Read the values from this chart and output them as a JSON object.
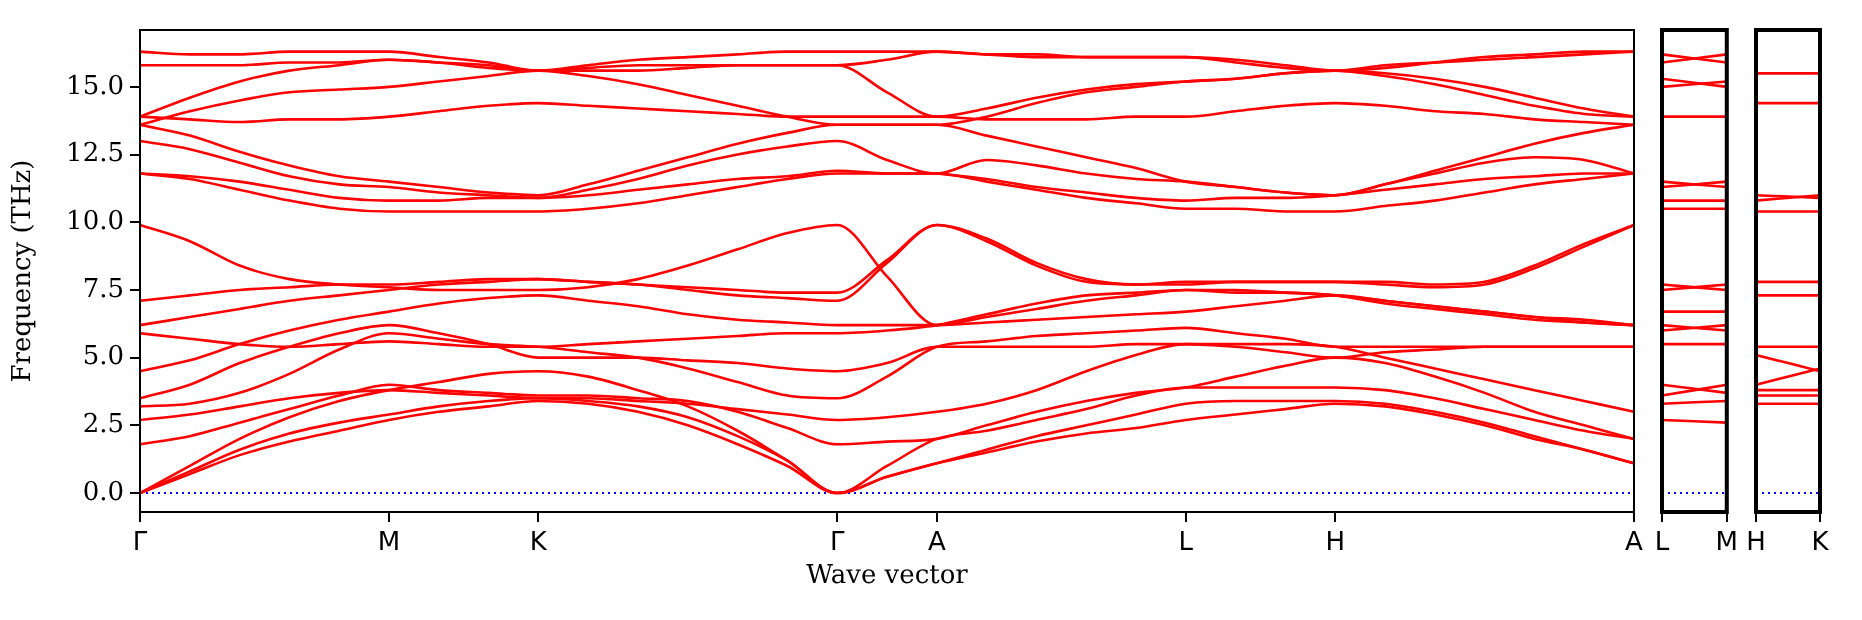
{
  "chart_data": [
    {
      "type": "line",
      "xlabel": "Wave vector",
      "ylabel": "Frequency (THz)",
      "ylim": [
        -0.7,
        17.1
      ],
      "categories": [
        "Γ",
        null,
        null,
        null,
        null,
        "M",
        null,
        null,
        "K",
        null,
        null,
        null,
        null,
        null,
        "Γ",
        null,
        "A",
        null,
        null,
        null,
        null,
        "L",
        null,
        null,
        "H",
        null,
        null,
        null,
        null,
        null,
        "A"
      ],
      "yticks": [
        {
          "value": 0,
          "label": "0.0"
        },
        {
          "value": 2.5,
          "label": "2.5"
        },
        {
          "value": 5,
          "label": "5.0"
        },
        {
          "value": 7.5,
          "label": "7.5"
        },
        {
          "value": 10,
          "label": "10.0"
        },
        {
          "value": 12.5,
          "label": "12.5"
        },
        {
          "value": 15,
          "label": "15.0"
        }
      ],
      "grid": false,
      "legend": false,
      "ref_lines": [
        {
          "axis": "y",
          "value": 0,
          "color": "#0000ff",
          "line_style": "dotted"
        }
      ],
      "series": [
        {
          "color": "#ff0000",
          "values": [
            0,
            0.7,
            1.4,
            1.9,
            2.3,
            2.7,
            3.0,
            3.2,
            3.4,
            3.3,
            3.0,
            2.5,
            1.8,
            1.0,
            0,
            0.6,
            1.1,
            1.5,
            1.9,
            2.2,
            2.4,
            2.7,
            2.9,
            3.1,
            3.3,
            3.2,
            2.9,
            2.5,
            2.0,
            1.6,
            1.1
          ]
        },
        {
          "color": "#ff0000",
          "values": [
            0,
            0.8,
            1.6,
            2.2,
            2.6,
            2.9,
            3.2,
            3.4,
            3.5,
            3.4,
            3.2,
            2.8,
            2.1,
            1.2,
            0,
            0.6,
            1.1,
            null,
            null,
            null,
            null,
            null,
            null,
            null,
            null,
            null,
            null,
            null,
            null,
            null,
            null
          ]
        },
        {
          "color": "#ff0000",
          "values": [
            null,
            null,
            null,
            null,
            null,
            null,
            null,
            null,
            null,
            null,
            null,
            null,
            null,
            null,
            null,
            null,
            1.1,
            1.6,
            2.1,
            2.5,
            2.9,
            3.3,
            3.4,
            3.4,
            3.4,
            3.3,
            3.0,
            2.6,
            2.1,
            1.6,
            1.1
          ]
        },
        {
          "color": "#ff0000",
          "values": [
            0,
            1.0,
            2.0,
            2.8,
            3.4,
            3.8,
            4.1,
            4.4,
            4.5,
            4.3,
            3.8,
            3.2,
            2.3,
            1.2,
            0,
            1.0,
            2.0,
            2.3,
            2.7,
            3.1,
            3.6,
            3.9,
            3.9,
            3.9,
            3.9,
            3.8,
            3.5,
            3.1,
            2.7,
            2.3,
            2.0
          ]
        },
        {
          "color": "#ff0000",
          "values": [
            1.8,
            2.1,
            2.6,
            3.1,
            3.6,
            4.0,
            3.8,
            3.7,
            3.6,
            3.6,
            3.5,
            3.4,
            3.0,
            2.4,
            1.8,
            1.9,
            2.0,
            2.5,
            3.0,
            3.4,
            3.7,
            3.9,
            4.3,
            4.7,
            5.0,
            4.8,
            4.3,
            3.7,
            3.0,
            2.5,
            2.0
          ]
        },
        {
          "color": "#ff0000",
          "values": [
            2.7,
            2.9,
            3.2,
            3.5,
            3.7,
            3.8,
            3.7,
            3.6,
            3.5,
            3.5,
            3.4,
            3.3,
            3.1,
            2.9,
            2.7,
            2.8,
            3.0,
            3.3,
            3.8,
            4.5,
            5.1,
            5.5,
            5.5,
            5.5,
            5.4,
            5.0,
            4.6,
            4.2,
            3.8,
            3.4,
            3.0
          ]
        },
        {
          "color": "#ff0000",
          "values": [
            3.2,
            3.3,
            3.7,
            4.4,
            5.3,
            5.9,
            5.7,
            5.5,
            5.4,
            5.2,
            5.0,
            4.6,
            4.1,
            3.6,
            3.5,
            4.3,
            5.4,
            5.6,
            5.8,
            5.9,
            6.0,
            6.1,
            5.9,
            5.7,
            5.4,
            5.4,
            5.4,
            5.4,
            5.4,
            5.4,
            5.4
          ]
        },
        {
          "color": "#ff0000",
          "values": [
            3.5,
            4.0,
            4.8,
            5.4,
            5.9,
            6.2,
            5.9,
            5.5,
            5.0,
            5.0,
            5.0,
            4.9,
            4.8,
            4.6,
            4.5,
            4.8,
            5.4,
            5.4,
            5.4,
            5.4,
            5.5,
            5.5,
            5.4,
            5.2,
            5.0,
            5.2,
            5.3,
            5.4,
            5.4,
            5.4,
            5.4
          ]
        },
        {
          "color": "#ff0000",
          "values": [
            4.5,
            4.9,
            5.5,
            6.0,
            6.4,
            6.7,
            7.0,
            7.2,
            7.3,
            7.1,
            6.9,
            6.6,
            6.4,
            6.3,
            6.2,
            6.2,
            6.2,
            6.3,
            6.4,
            6.5,
            6.6,
            6.7,
            6.9,
            7.1,
            7.3,
            7.1,
            6.9,
            6.7,
            6.5,
            6.4,
            6.2
          ]
        },
        {
          "color": "#ff0000",
          "values": [
            5.9,
            5.7,
            5.5,
            5.4,
            5.5,
            5.6,
            5.5,
            5.4,
            5.4,
            5.5,
            5.6,
            5.7,
            5.8,
            5.9,
            5.9,
            6.0,
            6.2,
            6.6,
            7.0,
            7.3,
            7.4,
            7.5,
            7.5,
            7.4,
            7.3,
            7.0,
            6.8,
            6.6,
            6.4,
            6.3,
            6.2
          ]
        },
        {
          "color": "#ff0000",
          "values": [
            6.2,
            6.5,
            6.8,
            7.1,
            7.3,
            7.5,
            7.7,
            7.8,
            7.9,
            7.8,
            7.7,
            7.5,
            7.3,
            7.2,
            7.1,
            8.5,
            9.9,
            9.4,
            8.5,
            7.9,
            7.7,
            7.8,
            7.8,
            7.8,
            7.8,
            7.8,
            7.7,
            7.8,
            8.4,
            9.2,
            9.9
          ]
        },
        {
          "color": "#ff0000",
          "values": [
            7.1,
            7.3,
            7.5,
            7.6,
            7.7,
            7.7,
            7.8,
            7.9,
            7.9,
            7.8,
            7.7,
            7.6,
            7.5,
            7.4,
            7.4,
            8.6,
            9.9,
            9.3,
            8.4,
            7.8,
            7.7,
            7.7,
            7.8,
            7.8,
            7.8,
            7.7,
            7.6,
            7.7,
            8.3,
            9.1,
            9.9
          ]
        },
        {
          "color": "#ff0000",
          "values": [
            9.9,
            9.3,
            8.4,
            7.9,
            7.7,
            7.6,
            7.5,
            7.5,
            7.5,
            7.6,
            7.9,
            8.4,
            9.0,
            9.6,
            9.9,
            8.0,
            6.2,
            6.5,
            6.8,
            7.1,
            7.3,
            7.5,
            7.4,
            7.4,
            7.3,
            7.1,
            6.9,
            6.7,
            6.5,
            6.3,
            6.2
          ]
        },
        {
          "color": "#ff0000",
          "values": [
            11.8,
            11.6,
            11.2,
            10.8,
            10.5,
            10.4,
            10.4,
            10.4,
            10.4,
            10.5,
            10.7,
            11.0,
            11.3,
            11.6,
            11.8,
            11.8,
            11.8,
            11.5,
            11.2,
            10.9,
            10.7,
            10.5,
            10.5,
            10.4,
            10.4,
            10.6,
            10.8,
            11.1,
            11.4,
            11.6,
            11.8
          ]
        },
        {
          "color": "#ff0000",
          "values": [
            11.8,
            11.7,
            11.5,
            11.2,
            10.9,
            10.8,
            10.8,
            10.9,
            10.9,
            11.0,
            11.2,
            11.4,
            11.6,
            11.7,
            11.9,
            11.8,
            11.8,
            null,
            null,
            null,
            null,
            null,
            null,
            null,
            null,
            null,
            null,
            null,
            null,
            null,
            null
          ]
        },
        {
          "color": "#ff0000",
          "values": [
            null,
            null,
            null,
            null,
            null,
            null,
            null,
            null,
            null,
            null,
            null,
            null,
            null,
            null,
            null,
            null,
            11.8,
            11.6,
            11.3,
            11.1,
            10.9,
            10.8,
            10.9,
            10.9,
            11.0,
            11.2,
            11.4,
            11.6,
            11.7,
            11.8,
            11.8
          ]
        },
        {
          "color": "#ff0000",
          "values": [
            13.0,
            12.7,
            12.2,
            11.7,
            11.4,
            11.3,
            11.1,
            11.0,
            10.9,
            11.2,
            11.6,
            12.1,
            12.5,
            12.8,
            13.0,
            12.3,
            11.8,
            12.3,
            12.1,
            11.8,
            11.6,
            11.5,
            11.3,
            11.1,
            11.0,
            11.4,
            11.8,
            12.2,
            12.4,
            12.3,
            11.8
          ]
        },
        {
          "color": "#ff0000",
          "values": [
            13.6,
            13.2,
            12.6,
            12.1,
            11.7,
            11.5,
            11.3,
            11.1,
            11.0,
            11.4,
            11.9,
            12.4,
            12.9,
            13.3,
            13.6,
            13.6,
            13.6,
            13.2,
            12.8,
            12.4,
            12.0,
            11.5,
            11.3,
            11.1,
            11.0,
            11.4,
            11.9,
            12.4,
            12.9,
            13.3,
            13.6
          ]
        },
        {
          "color": "#ff0000",
          "values": [
            13.9,
            13.8,
            13.7,
            13.8,
            13.8,
            13.9,
            14.1,
            14.3,
            14.4,
            14.3,
            14.2,
            14.1,
            14.0,
            13.9,
            13.9,
            13.9,
            13.9,
            13.8,
            13.8,
            13.8,
            13.9,
            13.9,
            14.1,
            14.3,
            14.4,
            14.3,
            14.1,
            14.0,
            13.8,
            13.7,
            13.6
          ]
        },
        {
          "color": "#ff0000",
          "values": [
            13.6,
            14.1,
            14.5,
            14.8,
            14.9,
            15.0,
            15.2,
            15.4,
            15.6,
            15.4,
            15.1,
            14.7,
            14.3,
            13.9,
            13.6,
            13.6,
            13.6,
            13.9,
            14.4,
            14.8,
            15.0,
            15.2,
            15.3,
            15.5,
            15.6,
            15.4,
            15.1,
            14.7,
            14.3,
            14.0,
            13.9
          ]
        },
        {
          "color": "#ff0000",
          "values": [
            13.9,
            14.6,
            15.2,
            15.6,
            15.8,
            16.0,
            15.9,
            15.7,
            15.6,
            15.7,
            15.8,
            15.8,
            15.8,
            15.8,
            15.8,
            14.8,
            13.9,
            14.2,
            14.6,
            14.9,
            15.1,
            15.2,
            15.3,
            15.5,
            15.6,
            15.5,
            15.3,
            15.0,
            14.6,
            14.2,
            13.9
          ]
        },
        {
          "color": "#ff0000",
          "values": [
            16.3,
            16.2,
            16.2,
            16.3,
            16.3,
            16.3,
            16.1,
            15.9,
            15.6,
            15.8,
            16.0,
            16.1,
            16.2,
            16.3,
            16.3,
            16.3,
            16.3,
            16.2,
            16.1,
            16.1,
            16.1,
            16.1,
            15.9,
            15.7,
            15.6,
            15.8,
            15.9,
            16.0,
            16.1,
            16.2,
            16.3
          ]
        },
        {
          "color": "#ff0000",
          "values": [
            15.8,
            15.8,
            15.8,
            15.9,
            15.9,
            16.0,
            15.9,
            15.8,
            15.6,
            15.6,
            15.6,
            15.7,
            15.8,
            15.8,
            15.8,
            16.0,
            16.3,
            16.2,
            16.2,
            16.1,
            16.1,
            16.1,
            16.0,
            15.8,
            15.6,
            15.7,
            15.9,
            16.1,
            16.2,
            16.3,
            16.3
          ]
        }
      ]
    },
    {
      "type": "line",
      "ylim": [
        -0.7,
        17.1
      ],
      "tick_labels": "x",
      "categories": [
        "L",
        "M"
      ],
      "grid": false,
      "legend": false,
      "ref_lines": [
        {
          "axis": "y",
          "value": 0,
          "color": "#0000ff",
          "line_style": "dotted"
        }
      ],
      "series": [
        {
          "color": "#ff0000",
          "values": [
            16.2,
            15.9
          ]
        },
        {
          "color": "#ff0000",
          "values": [
            15.9,
            16.2
          ]
        },
        {
          "color": "#ff0000",
          "values": [
            15.3,
            15.0
          ]
        },
        {
          "color": "#ff0000",
          "values": [
            15.0,
            15.2
          ]
        },
        {
          "color": "#ff0000",
          "values": [
            13.9,
            13.9
          ]
        },
        {
          "color": "#ff0000",
          "values": [
            11.5,
            11.3
          ]
        },
        {
          "color": "#ff0000",
          "values": [
            11.3,
            11.5
          ]
        },
        {
          "color": "#ff0000",
          "values": [
            10.8,
            10.8
          ]
        },
        {
          "color": "#ff0000",
          "values": [
            10.5,
            10.5
          ]
        },
        {
          "color": "#ff0000",
          "values": [
            7.7,
            7.5
          ]
        },
        {
          "color": "#ff0000",
          "values": [
            7.5,
            7.7
          ]
        },
        {
          "color": "#ff0000",
          "values": [
            6.7,
            6.7
          ]
        },
        {
          "color": "#ff0000",
          "values": [
            6.2,
            6.0
          ]
        },
        {
          "color": "#ff0000",
          "values": [
            6.0,
            6.2
          ]
        },
        {
          "color": "#ff0000",
          "values": [
            5.5,
            5.5
          ]
        },
        {
          "color": "#ff0000",
          "values": [
            4.0,
            3.7
          ]
        },
        {
          "color": "#ff0000",
          "values": [
            3.6,
            4.0
          ]
        },
        {
          "color": "#ff0000",
          "values": [
            3.3,
            3.4
          ]
        },
        {
          "color": "#ff0000",
          "values": [
            2.7,
            2.6
          ]
        }
      ]
    },
    {
      "type": "line",
      "ylim": [
        -0.7,
        17.1
      ],
      "tick_labels": "x",
      "categories": [
        "H",
        "K"
      ],
      "grid": false,
      "legend": false,
      "ref_lines": [
        {
          "axis": "y",
          "value": 0,
          "color": "#0000ff",
          "line_style": "dotted"
        }
      ],
      "series": [
        {
          "color": "#ff0000",
          "values": [
            15.5,
            15.5
          ]
        },
        {
          "color": "#ff0000",
          "values": [
            14.4,
            14.4
          ]
        },
        {
          "color": "#ff0000",
          "values": [
            11.0,
            10.9
          ]
        },
        {
          "color": "#ff0000",
          "values": [
            10.8,
            11.0
          ]
        },
        {
          "color": "#ff0000",
          "values": [
            10.4,
            10.4
          ]
        },
        {
          "color": "#ff0000",
          "values": [
            7.8,
            7.8
          ]
        },
        {
          "color": "#ff0000",
          "values": [
            7.3,
            7.3
          ]
        },
        {
          "color": "#ff0000",
          "values": [
            5.4,
            5.4
          ]
        },
        {
          "color": "#ff0000",
          "values": [
            5.1,
            4.5
          ]
        },
        {
          "color": "#ff0000",
          "values": [
            4.0,
            4.6
          ]
        },
        {
          "color": "#ff0000",
          "values": [
            3.8,
            3.8
          ]
        },
        {
          "color": "#ff0000",
          "values": [
            3.6,
            3.6
          ]
        },
        {
          "color": "#ff0000",
          "values": [
            3.3,
            3.3
          ]
        }
      ]
    }
  ]
}
